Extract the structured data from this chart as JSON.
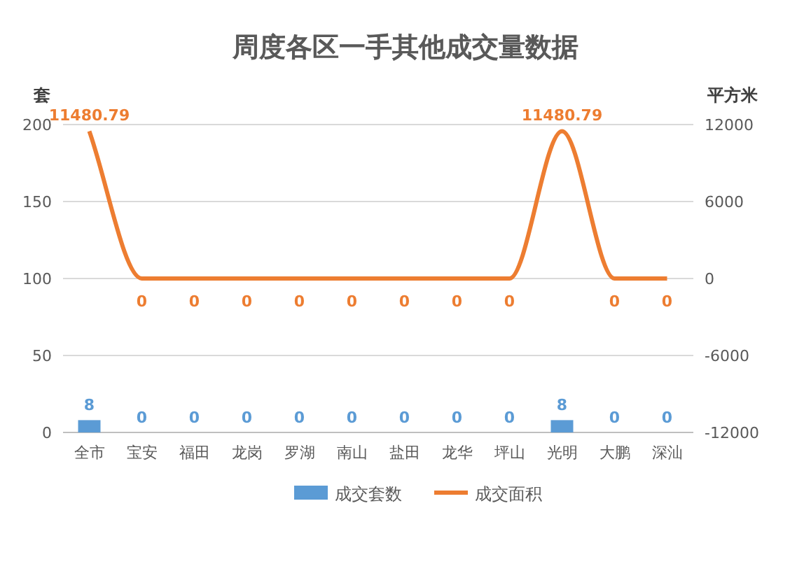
{
  "chart_data": {
    "type": "bar",
    "title": "周度各区一手其他成交量数据",
    "ylabel": "套",
    "y2label": "平方米",
    "categories": [
      "全市",
      "宝安",
      "福田",
      "龙岗",
      "罗湖",
      "南山",
      "盐田",
      "龙华",
      "坪山",
      "光明",
      "大鹏",
      "深汕"
    ],
    "series": [
      {
        "name": "成交套数",
        "color": "#5b9bd5",
        "values": [
          8,
          0,
          0,
          0,
          0,
          0,
          0,
          0,
          0,
          8,
          0,
          0
        ]
      },
      {
        "name": "成交面积",
        "type": "line",
        "axis": "y2",
        "color": "#ed7d31",
        "values": [
          11480.79,
          0,
          0,
          0,
          0,
          0,
          0,
          0,
          0,
          11480.79,
          0,
          0
        ]
      }
    ],
    "ylim": [
      0,
      200
    ],
    "yticks": [
      0,
      50,
      100,
      150,
      200
    ],
    "y2lim": [
      -12000,
      12000
    ],
    "y2ticks": [
      -12000,
      -6000,
      0,
      6000,
      12000
    ],
    "grid": "y",
    "legend": "bottom",
    "data_labels": true,
    "marker": "none",
    "line_style": "solid"
  }
}
